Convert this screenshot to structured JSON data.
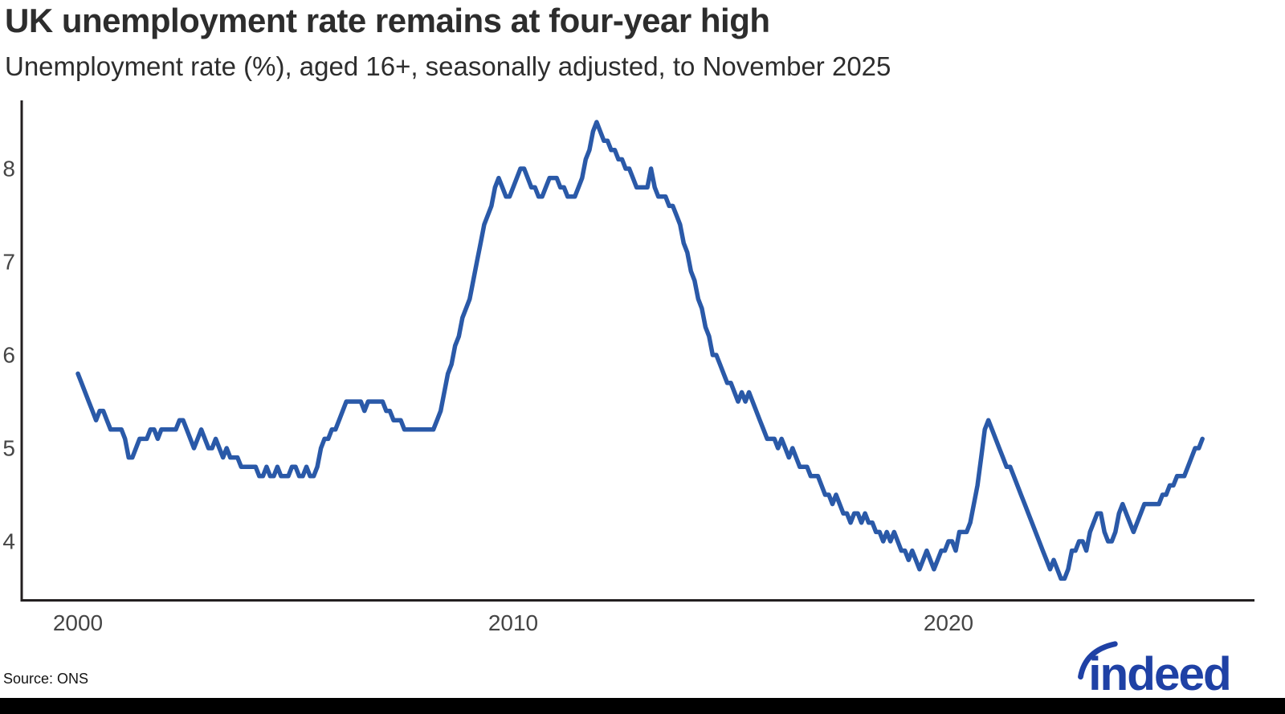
{
  "header": {
    "title": "UK unemployment rate remains at four-year high",
    "subtitle": "Unemployment rate (%), aged 16+, seasonally adjusted, to November 2025"
  },
  "footer": {
    "source": "Source: ONS",
    "logo_text": "indeed"
  },
  "colors": {
    "line": "#2a59a8",
    "axis": "#231f20",
    "tick_text": "#454545",
    "title_text": "#2d2d2d",
    "source_text": "#141414",
    "logo_blue": "#1f41a5",
    "footer_bar": "#000000",
    "background": "#ffffff"
  },
  "chart_data": {
    "type": "line",
    "title": "UK unemployment rate remains at four-year high",
    "subtitle": "Unemployment rate (%), aged 16+, seasonally adjusted, to November 2025",
    "source": "ONS",
    "frequency": "monthly",
    "start": "2000-01",
    "end": "2025-11",
    "xlabel": "",
    "ylabel": "Unemployment rate (%)",
    "grid": false,
    "legend_position": "none",
    "ylim": [
      3.37,
      8.73
    ],
    "y_ticks": [
      8,
      7,
      6,
      5,
      4
    ],
    "x_ticks": [
      {
        "label": "2000",
        "year": 2000
      },
      {
        "label": "2010",
        "year": 2010
      },
      {
        "label": "2020",
        "year": 2020
      }
    ],
    "series": [
      {
        "name": "Unemployment rate (%)",
        "values": [
          5.8,
          5.7,
          5.6,
          5.5,
          5.4,
          5.3,
          5.4,
          5.4,
          5.3,
          5.2,
          5.2,
          5.2,
          5.2,
          5.1,
          4.9,
          4.9,
          5.0,
          5.1,
          5.1,
          5.1,
          5.2,
          5.2,
          5.1,
          5.2,
          5.2,
          5.2,
          5.2,
          5.2,
          5.3,
          5.3,
          5.2,
          5.1,
          5.0,
          5.1,
          5.2,
          5.1,
          5.0,
          5.0,
          5.1,
          5.0,
          4.9,
          5.0,
          4.9,
          4.9,
          4.9,
          4.8,
          4.8,
          4.8,
          4.8,
          4.8,
          4.7,
          4.7,
          4.8,
          4.7,
          4.7,
          4.8,
          4.7,
          4.7,
          4.7,
          4.8,
          4.8,
          4.7,
          4.7,
          4.8,
          4.7,
          4.7,
          4.8,
          5.0,
          5.1,
          5.1,
          5.2,
          5.2,
          5.3,
          5.4,
          5.5,
          5.5,
          5.5,
          5.5,
          5.5,
          5.4,
          5.5,
          5.5,
          5.5,
          5.5,
          5.5,
          5.4,
          5.4,
          5.3,
          5.3,
          5.3,
          5.2,
          5.2,
          5.2,
          5.2,
          5.2,
          5.2,
          5.2,
          5.2,
          5.2,
          5.3,
          5.4,
          5.6,
          5.8,
          5.9,
          6.1,
          6.2,
          6.4,
          6.5,
          6.6,
          6.8,
          7.0,
          7.2,
          7.4,
          7.5,
          7.6,
          7.8,
          7.9,
          7.8,
          7.7,
          7.7,
          7.8,
          7.9,
          8.0,
          8.0,
          7.9,
          7.8,
          7.8,
          7.7,
          7.7,
          7.8,
          7.9,
          7.9,
          7.9,
          7.8,
          7.8,
          7.7,
          7.7,
          7.7,
          7.8,
          7.9,
          8.1,
          8.2,
          8.4,
          8.5,
          8.4,
          8.3,
          8.3,
          8.2,
          8.2,
          8.1,
          8.1,
          8.0,
          8.0,
          7.9,
          7.8,
          7.8,
          7.8,
          7.8,
          8.0,
          7.8,
          7.7,
          7.7,
          7.7,
          7.6,
          7.6,
          7.5,
          7.4,
          7.2,
          7.1,
          6.9,
          6.8,
          6.6,
          6.5,
          6.3,
          6.2,
          6.0,
          6.0,
          5.9,
          5.8,
          5.7,
          5.7,
          5.6,
          5.5,
          5.6,
          5.5,
          5.6,
          5.5,
          5.4,
          5.3,
          5.2,
          5.1,
          5.1,
          5.1,
          5.0,
          5.1,
          5.0,
          4.9,
          5.0,
          4.9,
          4.8,
          4.8,
          4.8,
          4.7,
          4.7,
          4.7,
          4.6,
          4.5,
          4.5,
          4.4,
          4.5,
          4.4,
          4.3,
          4.3,
          4.2,
          4.3,
          4.3,
          4.2,
          4.3,
          4.2,
          4.2,
          4.1,
          4.1,
          4.0,
          4.1,
          4.0,
          4.1,
          4.0,
          3.9,
          3.9,
          3.8,
          3.9,
          3.8,
          3.7,
          3.8,
          3.9,
          3.8,
          3.7,
          3.8,
          3.9,
          3.9,
          4.0,
          4.0,
          3.9,
          4.1,
          4.1,
          4.1,
          4.2,
          4.4,
          4.6,
          4.9,
          5.2,
          5.3,
          5.2,
          5.1,
          5.0,
          4.9,
          4.8,
          4.8,
          4.7,
          4.6,
          4.5,
          4.4,
          4.3,
          4.2,
          4.1,
          4.0,
          3.9,
          3.8,
          3.7,
          3.8,
          3.7,
          3.6,
          3.6,
          3.7,
          3.9,
          3.9,
          4.0,
          4.0,
          3.9,
          4.1,
          4.2,
          4.3,
          4.3,
          4.1,
          4.0,
          4.0,
          4.1,
          4.3,
          4.4,
          4.3,
          4.2,
          4.1,
          4.2,
          4.3,
          4.4,
          4.4,
          4.4,
          4.4,
          4.4,
          4.5,
          4.5,
          4.6,
          4.6,
          4.7,
          4.7,
          4.7,
          4.8,
          4.9,
          5.0,
          5.0,
          5.1
        ]
      }
    ]
  }
}
